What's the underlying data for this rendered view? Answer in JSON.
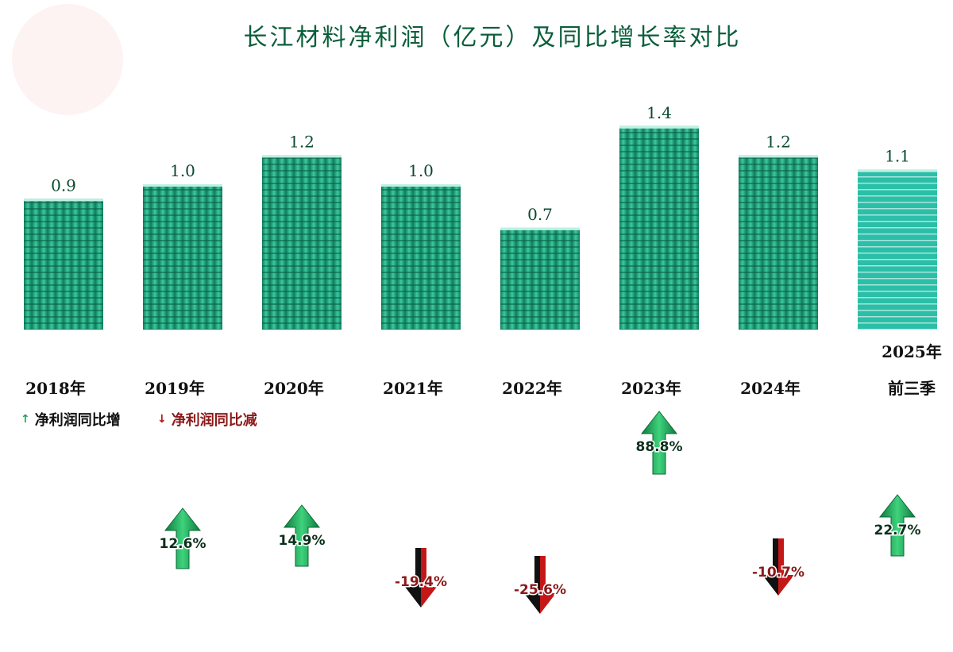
{
  "title": "长江材料净利润（亿元）及同比增长率对比",
  "legend": {
    "increase": {
      "icon": "up-arrow-icon",
      "label": "净利润同比增"
    },
    "decrease": {
      "icon": "down-arrow-icon",
      "label": "净利润同比减"
    }
  },
  "colors": {
    "bar": "#1fae86",
    "bar_light": "#2bbfa8",
    "title": "#0b5e3b",
    "value_label": "#0b4a2f",
    "increase": "#1aa35b",
    "decrease": "#c41818",
    "decrease_label": "#8b1a1a"
  },
  "chart_data": {
    "type": "bar",
    "categories": [
      "2018年",
      "2019年",
      "2020年",
      "2021年",
      "2022年",
      "2023年",
      "2024年",
      "2025年 前三季"
    ],
    "series": [
      {
        "values": [
          0.9,
          1.0,
          1.2,
          1.0,
          0.7,
          1.4,
          1.2,
          1.1
        ]
      }
    ],
    "value_labels": [
      "0.9",
      "1.0",
      "1.2",
      "1.0",
      "0.7",
      "1.4",
      "1.2",
      "1.1"
    ],
    "growth_rates": [
      null,
      12.6,
      14.9,
      -19.4,
      -25.6,
      88.8,
      -10.7,
      22.7
    ],
    "growth_labels": [
      null,
      "12.6%",
      "14.9%",
      "-19.4%",
      "-25.6%",
      "88.8%",
      "-10.7%",
      "22.7%"
    ],
    "ylim": [
      0,
      1.4
    ],
    "grid": false
  }
}
